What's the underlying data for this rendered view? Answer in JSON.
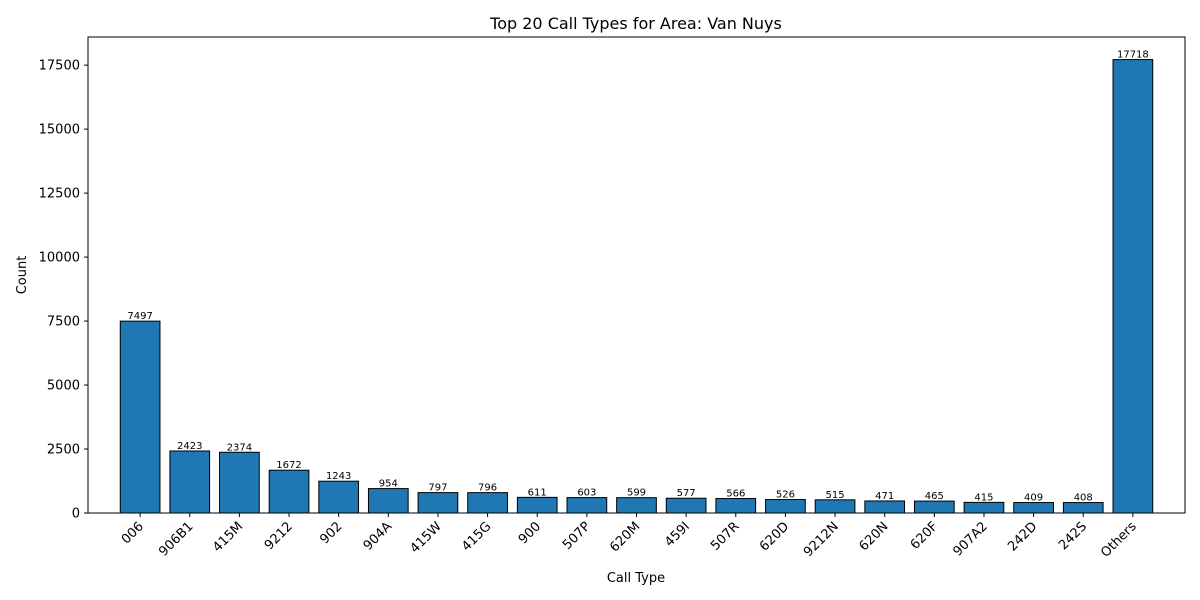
{
  "chart_data": {
    "type": "bar",
    "title": "Top 20 Call Types for Area: Van Nuys",
    "xlabel": "Call Type",
    "ylabel": "Count",
    "categories": [
      "006",
      "906B1",
      "415M",
      "9212",
      "902",
      "904A",
      "415W",
      "415G",
      "900",
      "507P",
      "620M",
      "459I",
      "507R",
      "620D",
      "9212N",
      "620N",
      "620F",
      "907A2",
      "242D",
      "242S",
      "Others"
    ],
    "values": [
      7497,
      2423,
      2374,
      1672,
      1243,
      954,
      797,
      796,
      611,
      603,
      599,
      577,
      566,
      526,
      515,
      471,
      465,
      415,
      409,
      408,
      17718
    ],
    "ylim": [
      0,
      18600
    ],
    "yticks": [
      0,
      2500,
      5000,
      7500,
      10000,
      12500,
      15000,
      17500
    ],
    "bar_color": "#1f77b4",
    "grid": false,
    "legend": false
  }
}
